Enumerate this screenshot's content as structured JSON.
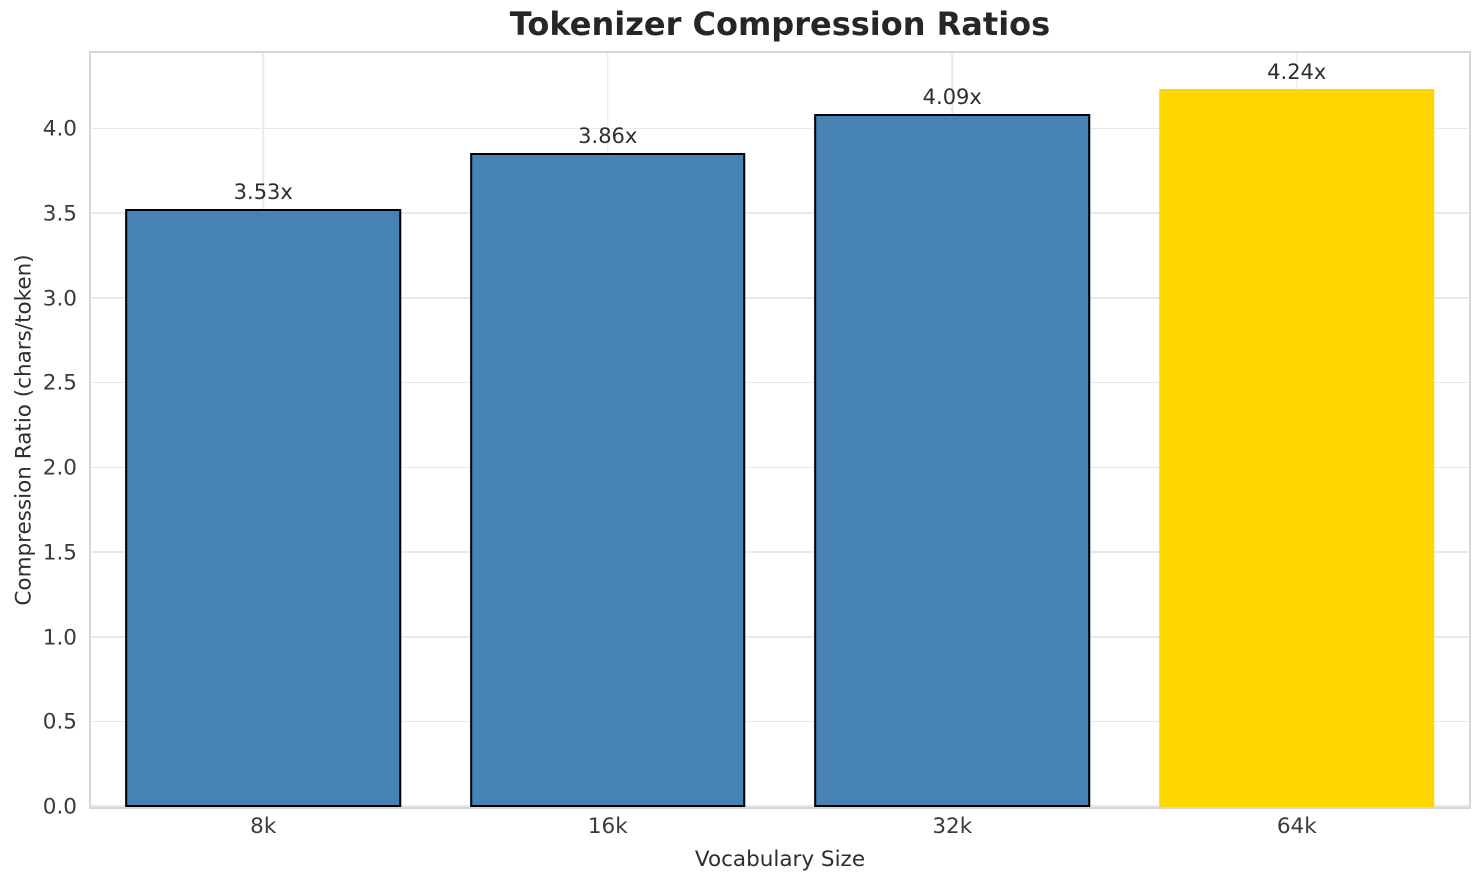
{
  "chart_data": {
    "type": "bar",
    "title": "Tokenizer Compression Ratios",
    "xlabel": "Vocabulary Size",
    "ylabel": "Compression Ratio (chars/token)",
    "categories": [
      "8k",
      "16k",
      "32k",
      "64k"
    ],
    "values": [
      3.53,
      3.86,
      4.09,
      4.24
    ],
    "value_labels": [
      "3.53x",
      "3.86x",
      "4.09x",
      "4.24x"
    ],
    "bar_colors": [
      "#4682b4",
      "#4682b4",
      "#4682b4",
      "#ffd700"
    ],
    "bar_edge_colors": [
      "#000000",
      "#000000",
      "#000000",
      "none"
    ],
    "bar_width_fraction": 0.8,
    "ylim": [
      0,
      4.45
    ],
    "yticks": [
      0.0,
      0.5,
      1.0,
      1.5,
      2.0,
      2.5,
      3.0,
      3.5,
      4.0
    ],
    "ytick_labels": [
      "0.0",
      "0.5",
      "1.0",
      "1.5",
      "2.0",
      "2.5",
      "3.0",
      "3.5",
      "4.0"
    ],
    "grid": true,
    "legend": "none"
  },
  "style": {
    "background": "#ffffff",
    "accent_blue": "#4682b4",
    "highlight_gold": "#ffd700",
    "grid_color": "#e9e9e9",
    "spine_color": "#d6d6d6",
    "title_color": "#262626",
    "tick_color": "#3a3a3a"
  }
}
